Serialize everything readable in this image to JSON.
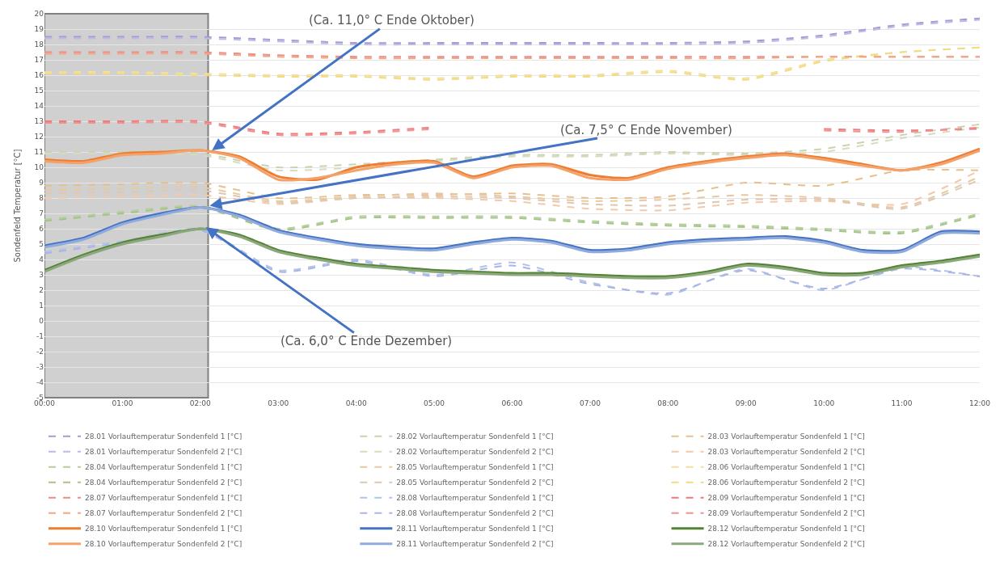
{
  "chart_data": {
    "type": "line",
    "ylabel": "Sondenfeld Temperatur [°C]",
    "xlim": [
      0,
      12
    ],
    "ylim": [
      -5,
      20
    ],
    "xticks": [
      {
        "value": 0,
        "label": "00:00"
      },
      {
        "value": 1,
        "label": "01:00"
      },
      {
        "value": 2,
        "label": "02:00"
      },
      {
        "value": 3,
        "label": "03:00"
      },
      {
        "value": 4,
        "label": "04:00"
      },
      {
        "value": 5,
        "label": "05:00"
      },
      {
        "value": 6,
        "label": "06:00"
      },
      {
        "value": 7,
        "label": "07:00"
      },
      {
        "value": 8,
        "label": "08:00"
      },
      {
        "value": 9,
        "label": "09:00"
      },
      {
        "value": 10,
        "label": "10:00"
      },
      {
        "value": 11,
        "label": "11:00"
      },
      {
        "value": 12,
        "label": "12:00"
      }
    ],
    "yticks": [
      -5,
      -4,
      -3,
      -2,
      -1,
      0,
      1,
      2,
      3,
      4,
      5,
      6,
      7,
      8,
      9,
      10,
      11,
      12,
      13,
      14,
      15,
      16,
      17,
      18,
      19,
      20
    ],
    "grid": "y",
    "legend": "bottom",
    "x": [
      0,
      1,
      2,
      3,
      4,
      5,
      6,
      7,
      8,
      9,
      10,
      11,
      12
    ],
    "series": [
      {
        "name": "28.01 Vorlauftemperatur Sondenfeld 1 [°C]",
        "color": "#a998d4",
        "line_style": "dashed",
        "values": [
          18.5,
          18.5,
          18.5,
          18.3,
          18.1,
          18.1,
          18.1,
          18.1,
          18.1,
          18.2,
          18.6,
          19.3,
          19.7
        ]
      },
      {
        "name": "28.01 Vorlauftemperatur Sondenfeld 2 [°C]",
        "color": "#b8bde6",
        "line_style": "dashed",
        "values": [
          18.4,
          18.4,
          18.4,
          18.2,
          18.0,
          18.0,
          18.0,
          18.0,
          18.0,
          18.1,
          18.5,
          19.2,
          19.6
        ]
      },
      {
        "name": "28.02 Vorlauftemperatur Sondenfeld 1 [°C]",
        "color": "#c9d3b0",
        "line_style": "dashed",
        "values": [
          11.0,
          11.0,
          10.9,
          10.0,
          10.2,
          10.5,
          10.8,
          10.8,
          11.0,
          10.9,
          11.2,
          12.1,
          12.8
        ]
      },
      {
        "name": "28.02 Vorlauftemperatur Sondenfeld 2 [°C]",
        "color": "#d6dcc0",
        "line_style": "dashed",
        "values": [
          10.9,
          10.9,
          10.8,
          9.8,
          10.0,
          10.4,
          10.7,
          10.7,
          10.9,
          10.8,
          11.0,
          11.9,
          12.6
        ]
      },
      {
        "name": "28.03 Vorlauftemperatur Sondenfeld 1 [°C]",
        "color": "#e8c08e",
        "line_style": "dashed",
        "values": [
          8.8,
          8.9,
          9.0,
          8.0,
          8.2,
          8.2,
          8.3,
          8.0,
          8.1,
          9.0,
          8.8,
          9.8,
          9.8
        ]
      },
      {
        "name": "28.03 Vorlauftemperatur Sondenfeld 2 [°C]",
        "color": "#f5c8a6",
        "line_style": "dashed",
        "values": [
          8.0,
          8.1,
          8.2,
          7.6,
          8.0,
          8.0,
          7.8,
          7.3,
          7.2,
          7.7,
          7.8,
          7.6,
          9.8
        ]
      },
      {
        "name": "28.04 Vorlauftemperatur Sondenfeld 1 [°C]",
        "color": "#b5cf9c",
        "line_style": "dashed",
        "values": [
          6.6,
          7.1,
          7.5,
          6.0,
          6.8,
          6.8,
          6.8,
          6.5,
          6.3,
          6.2,
          6.0,
          5.8,
          7.0
        ]
      },
      {
        "name": "28.04 Vorlauftemperatur Sondenfeld 2 [°C]",
        "color": "#a6c487",
        "line_style": "dashed",
        "values": [
          6.5,
          7.0,
          7.4,
          5.9,
          6.7,
          6.7,
          6.7,
          6.4,
          6.2,
          6.1,
          5.9,
          5.7,
          6.9
        ]
      },
      {
        "name": "28.05 Vorlauftemperatur Sondenfeld 1 [°C]",
        "color": "#e6c9a0",
        "line_style": "dashed",
        "values": [
          8.5,
          8.6,
          8.7,
          7.8,
          8.1,
          8.3,
          8.1,
          7.8,
          7.9,
          8.2,
          8.0,
          7.4,
          9.4
        ]
      },
      {
        "name": "28.05 Vorlauftemperatur Sondenfeld 2 [°C]",
        "color": "#dcc8b4",
        "line_style": "dashed",
        "values": [
          8.3,
          8.4,
          8.5,
          7.7,
          8.0,
          8.1,
          8.0,
          7.6,
          7.5,
          7.9,
          7.9,
          7.3,
          9.2
        ]
      },
      {
        "name": "28.06 Vorlauftemperatur Sondenfeld 1 [°C]",
        "color": "#f3e0a0",
        "line_style": "dashed",
        "values": [
          16.2,
          16.2,
          16.1,
          16.0,
          16.0,
          15.8,
          16.0,
          16.0,
          16.3,
          15.8,
          17.0,
          17.5,
          17.8
        ]
      },
      {
        "name": "28.06 Vorlauftemperatur Sondenfeld 2 [°C]",
        "color": "#f2dc80",
        "line_style": "dashed",
        "values": [
          16.1,
          16.1,
          16.0,
          15.9,
          15.9,
          15.7,
          15.9,
          15.9,
          16.2,
          15.7,
          16.9,
          17.5,
          17.8
        ]
      },
      {
        "name": "28.07 Vorlauftemperatur Sondenfeld 1 [°C]",
        "color": "#ef8a8a",
        "line_style": "dashed",
        "values": [
          17.5,
          17.5,
          17.5,
          17.3,
          17.2,
          17.2,
          17.2,
          17.2,
          17.2,
          17.2,
          17.2,
          17.2,
          17.2
        ]
      },
      {
        "name": "28.07 Vorlauftemperatur Sondenfeld 2 [°C]",
        "color": "#f0a884",
        "line_style": "dashed",
        "values": [
          17.4,
          17.4,
          17.4,
          17.2,
          17.1,
          17.1,
          17.1,
          17.1,
          17.1,
          17.1,
          17.2,
          17.2,
          17.2
        ]
      },
      {
        "name": "28.08 Vorlauftemperatur Sondenfeld 1 [°C]",
        "color": "#b3c3e6",
        "line_style": "dashed",
        "values": [
          4.5,
          5.2,
          6.0,
          3.3,
          4.0,
          3.0,
          3.8,
          2.5,
          1.7,
          3.4,
          2.0,
          3.5,
          2.9
        ]
      },
      {
        "name": "28.08 Vorlauftemperatur Sondenfeld 2 [°C]",
        "color": "#a9b4e8",
        "line_style": "dashed",
        "values": [
          4.4,
          5.1,
          5.9,
          3.2,
          3.9,
          2.9,
          3.6,
          2.4,
          1.8,
          3.3,
          2.1,
          3.4,
          2.9
        ]
      },
      {
        "name": "28.09 Vorlauftemperatur Sondenfeld 1 [°C]",
        "color": "#f07a7a",
        "line_style": "dashed",
        "values": [
          13.0,
          13.0,
          13.0,
          12.2,
          12.3,
          12.6,
          null,
          null,
          null,
          null,
          12.5,
          12.4,
          12.5
        ]
      },
      {
        "name": "28.09 Vorlauftemperatur Sondenfeld 2 [°C]",
        "color": "#f29090",
        "line_style": "dashed",
        "values": [
          12.9,
          12.9,
          12.9,
          12.1,
          12.2,
          12.5,
          null,
          null,
          null,
          null,
          12.4,
          12.3,
          12.6
        ]
      },
      {
        "name": "28.10 Vorlauftemperatur Sondenfeld 1 [°C]",
        "color": "#ed7d31",
        "line_style": "solid",
        "x": [
          0,
          0.5,
          1,
          1.5,
          2,
          2.5,
          3,
          3.5,
          4,
          4.5,
          5,
          5.5,
          6,
          6.5,
          7,
          7.5,
          8,
          8.5,
          9,
          9.5,
          10,
          10.5,
          11,
          11.5,
          12
        ],
        "values": [
          10.5,
          10.4,
          10.9,
          11.0,
          11.1,
          10.7,
          9.4,
          9.2,
          10.0,
          10.3,
          10.4,
          9.4,
          10.1,
          10.2,
          9.5,
          9.3,
          10.0,
          10.4,
          10.7,
          10.9,
          10.6,
          10.2,
          9.8,
          10.3,
          11.2
        ]
      },
      {
        "name": "28.10 Vorlauftemperatur Sondenfeld 2 [°C]",
        "color": "#f4a26a",
        "line_style": "solid",
        "x": [
          0,
          0.5,
          1,
          1.5,
          2,
          2.5,
          3,
          3.5,
          4,
          4.5,
          5,
          5.5,
          6,
          6.5,
          7,
          7.5,
          8,
          8.5,
          9,
          9.5,
          10,
          10.5,
          11,
          11.5,
          12
        ],
        "values": [
          10.4,
          10.3,
          10.8,
          10.9,
          11.1,
          10.6,
          9.2,
          9.3,
          9.8,
          10.2,
          10.3,
          9.3,
          10.0,
          10.1,
          9.3,
          9.2,
          9.9,
          10.3,
          10.6,
          10.8,
          10.5,
          10.1,
          9.8,
          10.2,
          11.1
        ]
      },
      {
        "name": "28.11 Vorlauftemperatur Sondenfeld 1 [°C]",
        "color": "#4472c4",
        "line_style": "solid",
        "x": [
          0,
          0.5,
          1,
          1.5,
          2,
          2.5,
          3,
          3.5,
          4,
          4.5,
          5,
          5.5,
          6,
          6.5,
          7,
          7.5,
          8,
          8.5,
          9,
          9.5,
          10,
          10.5,
          11,
          11.5,
          12
        ],
        "values": [
          4.9,
          5.4,
          6.4,
          7.0,
          7.4,
          6.9,
          5.9,
          5.4,
          5.0,
          4.8,
          4.7,
          5.1,
          5.4,
          5.2,
          4.6,
          4.7,
          5.1,
          5.3,
          5.4,
          5.5,
          5.2,
          4.6,
          4.6,
          5.8,
          5.8
        ]
      },
      {
        "name": "28.11 Vorlauftemperatur Sondenfeld 2 [°C]",
        "color": "#8faadc",
        "line_style": "solid",
        "x": [
          0,
          0.5,
          1,
          1.5,
          2,
          2.5,
          3,
          3.5,
          4,
          4.5,
          5,
          5.5,
          6,
          6.5,
          7,
          7.5,
          8,
          8.5,
          9,
          9.5,
          10,
          10.5,
          11,
          11.5,
          12
        ],
        "values": [
          4.8,
          5.3,
          6.3,
          6.9,
          7.4,
          6.8,
          5.8,
          5.3,
          4.9,
          4.7,
          4.6,
          5.0,
          5.3,
          5.1,
          4.5,
          4.6,
          5.0,
          5.2,
          5.3,
          5.4,
          5.1,
          4.5,
          4.5,
          5.7,
          5.7
        ]
      },
      {
        "name": "28.12 Vorlauftemperatur Sondenfeld 1 [°C]",
        "color": "#548235",
        "line_style": "solid",
        "x": [
          0,
          0.5,
          1,
          1.5,
          2,
          2.5,
          3,
          3.5,
          4,
          4.5,
          5,
          5.5,
          6,
          6.5,
          7,
          7.5,
          8,
          8.5,
          9,
          9.5,
          10,
          10.5,
          11,
          11.5,
          12
        ],
        "values": [
          3.3,
          4.3,
          5.1,
          5.6,
          6.0,
          5.6,
          4.6,
          4.1,
          3.7,
          3.5,
          3.3,
          3.2,
          3.1,
          3.1,
          3.0,
          2.9,
          2.9,
          3.2,
          3.7,
          3.5,
          3.1,
          3.1,
          3.6,
          3.9,
          4.3
        ]
      },
      {
        "name": "28.12 Vorlauftemperatur Sondenfeld 2 [°C]",
        "color": "#8ba87a",
        "line_style": "solid",
        "x": [
          0,
          0.5,
          1,
          1.5,
          2,
          2.5,
          3,
          3.5,
          4,
          4.5,
          5,
          5.5,
          6,
          6.5,
          7,
          7.5,
          8,
          8.5,
          9,
          9.5,
          10,
          10.5,
          11,
          11.5,
          12
        ],
        "values": [
          3.2,
          4.2,
          5.0,
          5.5,
          6.0,
          5.5,
          4.5,
          4.0,
          3.6,
          3.4,
          3.2,
          3.1,
          3.0,
          3.0,
          2.9,
          2.8,
          2.8,
          3.1,
          3.6,
          3.4,
          3.0,
          3.0,
          3.5,
          3.8,
          4.2
        ]
      }
    ],
    "bands": [
      {
        "axis": "x",
        "from": 0,
        "to": 2.1,
        "color": "#d0d0d0"
      }
    ],
    "annotations": [
      {
        "text": "(Ca. 11,0° C Ende Oktober)",
        "x": 2.15,
        "y": 11.1
      },
      {
        "text": "(Ca. 7,5° C Ende November)",
        "x": 2.12,
        "y": 7.5
      },
      {
        "text": "(Ca. 6,0° C Ende Dezember)",
        "x": 2.07,
        "y": 6.1
      }
    ]
  }
}
